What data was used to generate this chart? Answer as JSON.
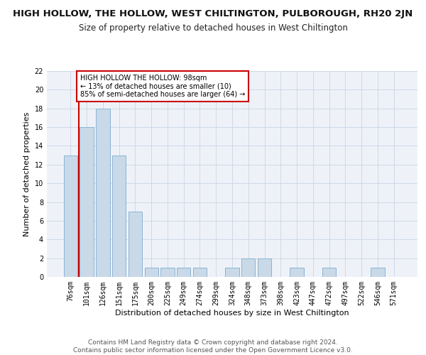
{
  "title": "HIGH HOLLOW, THE HOLLOW, WEST CHILTINGTON, PULBOROUGH, RH20 2JN",
  "subtitle": "Size of property relative to detached houses in West Chiltington",
  "xlabel": "Distribution of detached houses by size in West Chiltington",
  "ylabel": "Number of detached properties",
  "categories": [
    "76sqm",
    "101sqm",
    "126sqm",
    "151sqm",
    "175sqm",
    "200sqm",
    "225sqm",
    "249sqm",
    "274sqm",
    "299sqm",
    "324sqm",
    "348sqm",
    "373sqm",
    "398sqm",
    "423sqm",
    "447sqm",
    "472sqm",
    "497sqm",
    "522sqm",
    "546sqm",
    "571sqm"
  ],
  "values": [
    13,
    16,
    18,
    13,
    7,
    1,
    1,
    1,
    1,
    0,
    1,
    2,
    2,
    0,
    1,
    0,
    1,
    0,
    0,
    1,
    0
  ],
  "bar_color": "#c9d9e8",
  "bar_edgecolor": "#8ab4d4",
  "bar_linewidth": 0.7,
  "vline_color": "#cc0000",
  "annotation_box_text": "HIGH HOLLOW THE HOLLOW: 98sqm\n← 13% of detached houses are smaller (10)\n85% of semi-detached houses are larger (64) →",
  "annotation_box_color": "#cc0000",
  "ylim": [
    0,
    22
  ],
  "yticks": [
    0,
    2,
    4,
    6,
    8,
    10,
    12,
    14,
    16,
    18,
    20,
    22
  ],
  "grid_color": "#d0d8e8",
  "background_color": "#eef2f8",
  "title_fontsize": 9.5,
  "subtitle_fontsize": 8.5,
  "ylabel_fontsize": 8,
  "xlabel_fontsize": 8,
  "tick_fontsize": 7,
  "footer_text": "Contains HM Land Registry data © Crown copyright and database right 2024.\nContains public sector information licensed under the Open Government Licence v3.0.",
  "footer_fontsize": 6.5
}
